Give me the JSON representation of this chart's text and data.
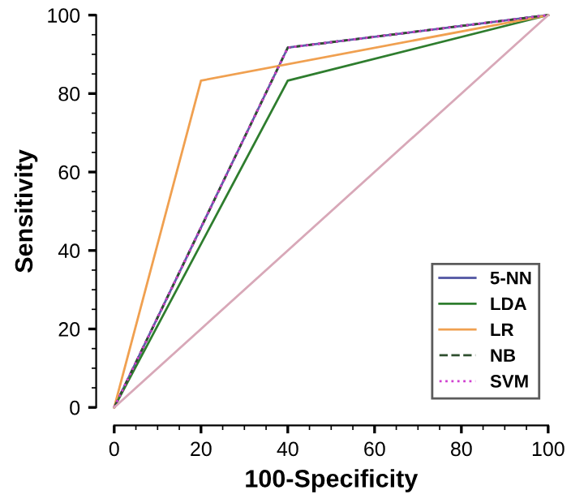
{
  "chart_data": {
    "type": "line",
    "xlabel": "100-Specificity",
    "ylabel": "Sensitivity",
    "xlim": [
      0,
      100
    ],
    "ylim": [
      0,
      100
    ],
    "xticks": [
      0,
      20,
      40,
      60,
      80,
      100
    ],
    "yticks": [
      0,
      20,
      40,
      60,
      80,
      100
    ],
    "grid": false,
    "legend": "bottom right",
    "marker": "none",
    "series": [
      {
        "name": "5-NN",
        "color": "#5b5fa8",
        "line_style": "solid",
        "x": [
          0,
          40,
          100
        ],
        "values": [
          0,
          91.7,
          100
        ]
      },
      {
        "name": "LDA",
        "color": "#2e7d2e",
        "line_style": "solid",
        "x": [
          0,
          40,
          100
        ],
        "values": [
          0,
          83.3,
          100
        ]
      },
      {
        "name": "LR",
        "color": "#f0a050",
        "line_style": "solid",
        "x": [
          0,
          20,
          100
        ],
        "values": [
          0,
          83.3,
          100
        ]
      },
      {
        "name": "NB",
        "color": "#2f4f2f",
        "line_style": "dashed",
        "x": [
          0,
          40,
          100
        ],
        "values": [
          0,
          91.7,
          100
        ]
      },
      {
        "name": "SVM",
        "color": "#d040d0",
        "line_style": "dotted",
        "x": [
          0,
          40,
          100
        ],
        "values": [
          0,
          91.7,
          100
        ]
      },
      {
        "color": "#d8a8b8",
        "line_style": "solid",
        "x": [
          0,
          100
        ],
        "values": [
          0,
          100
        ]
      }
    ]
  }
}
